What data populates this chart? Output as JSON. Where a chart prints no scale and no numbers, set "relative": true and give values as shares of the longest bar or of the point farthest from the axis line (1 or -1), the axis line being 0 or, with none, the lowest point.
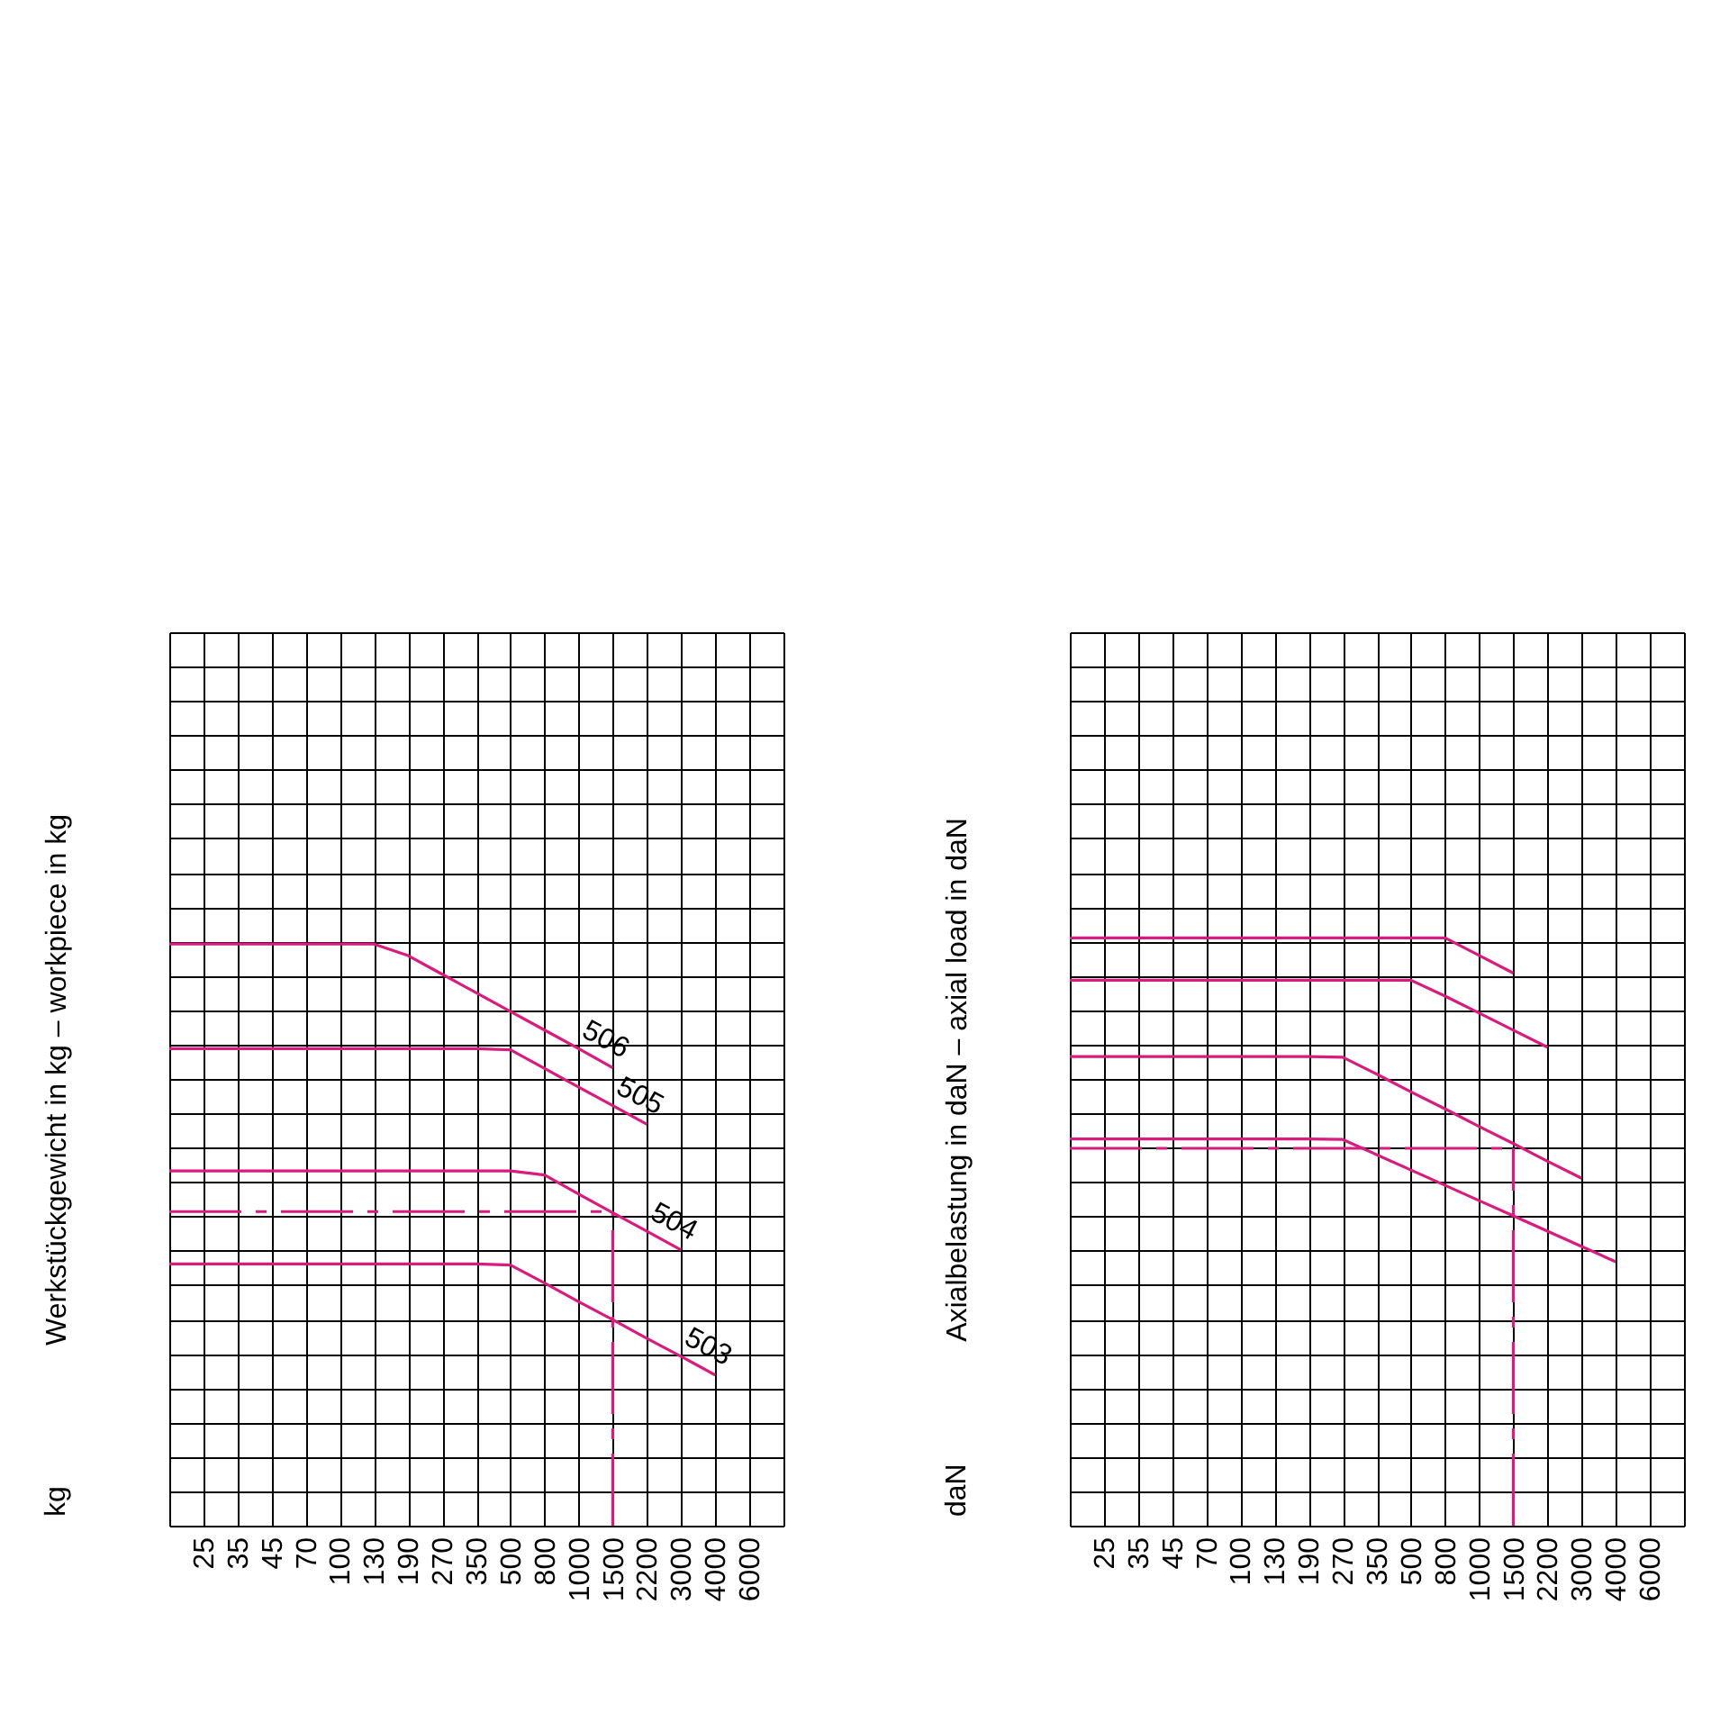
{
  "chart_data": [
    {
      "type": "line",
      "relative": true,
      "ylabel": "Werkstückgewicht in kg – workpiece in kg",
      "annotations": [
        "kg"
      ],
      "grid": true,
      "tick_labels": "x",
      "categories": [
        null,
        "25",
        "35",
        "45",
        "70",
        "100",
        "130",
        "190",
        "270",
        "350",
        "500",
        "800",
        "1000",
        "1500",
        "2200",
        "3000",
        "4000",
        "6000",
        null
      ],
      "series": [
        {
          "name": "506",
          "color": "#d81b7f",
          "values": [
            1,
            1,
            1,
            1,
            1,
            1,
            1,
            0.98,
            0.948,
            0.916,
            0.884,
            0.852,
            0.82,
            0.787,
            null,
            null,
            null,
            null,
            null
          ]
        },
        {
          "name": "505",
          "color": "#d81b7f",
          "values": [
            0.82,
            0.82,
            0.82,
            0.82,
            0.82,
            0.82,
            0.82,
            0.82,
            0.82,
            0.82,
            0.818,
            0.786,
            0.754,
            0.722,
            0.69,
            null,
            null,
            null,
            null
          ]
        },
        {
          "name": "504",
          "color": "#d81b7f",
          "values": [
            0.61,
            0.61,
            0.61,
            0.61,
            0.61,
            0.61,
            0.61,
            0.61,
            0.61,
            0.61,
            0.61,
            0.603,
            0.57,
            0.538,
            0.506,
            0.474,
            null,
            null,
            null
          ]
        },
        {
          "name": "503",
          "color": "#d81b7f",
          "values": [
            0.45,
            0.45,
            0.45,
            0.45,
            0.45,
            0.45,
            0.45,
            0.45,
            0.45,
            0.45,
            0.448,
            0.417,
            0.385,
            0.354,
            0.322,
            0.291,
            0.259,
            null,
            null
          ]
        }
      ],
      "ref_lines": [
        {
          "axis": "x",
          "value": "1500",
          "color": "#d81b7f",
          "line_style": "dashed"
        },
        {
          "axis": "y",
          "value": 0.54,
          "color": "#d81b7f",
          "line_style": "dashed"
        }
      ]
    },
    {
      "type": "line",
      "relative": true,
      "ylabel": "Axialbelastung in daN – axial load in daN",
      "annotations": [
        "daN"
      ],
      "grid": true,
      "tick_labels": "x",
      "categories": [
        null,
        "25",
        "35",
        "45",
        "70",
        "100",
        "130",
        "190",
        "270",
        "350",
        "500",
        "800",
        "1000",
        "1500",
        "2200",
        "3000",
        "4000",
        "6000",
        null
      ],
      "series": [
        {
          "color": "#d81b7f",
          "values": [
            1,
            1,
            1,
            1,
            1,
            1,
            1,
            1,
            1,
            1,
            1,
            1,
            0.97,
            0.94,
            null,
            null,
            null,
            null,
            null
          ]
        },
        {
          "color": "#d81b7f",
          "values": [
            0.928,
            0.928,
            0.928,
            0.928,
            0.928,
            0.928,
            0.928,
            0.928,
            0.928,
            0.928,
            0.928,
            0.901,
            0.872,
            0.843,
            0.814,
            null,
            null,
            null,
            null
          ]
        },
        {
          "color": "#d81b7f",
          "values": [
            0.798,
            0.798,
            0.798,
            0.798,
            0.798,
            0.798,
            0.798,
            0.798,
            0.797,
            0.768,
            0.738,
            0.709,
            0.679,
            0.65,
            0.62,
            0.591,
            null,
            null,
            null
          ]
        },
        {
          "color": "#d81b7f",
          "values": [
            0.658,
            0.658,
            0.658,
            0.658,
            0.658,
            0.658,
            0.658,
            0.658,
            0.657,
            0.631,
            0.605,
            0.579,
            0.553,
            0.527,
            0.501,
            0.475,
            0.449,
            null,
            null
          ]
        }
      ],
      "ref_lines": [
        {
          "axis": "x",
          "value": "1500",
          "color": "#d81b7f",
          "line_style": "dashed"
        },
        {
          "axis": "y",
          "value": 0.642,
          "color": "#d81b7f",
          "line_style": "dashed"
        }
      ]
    }
  ]
}
